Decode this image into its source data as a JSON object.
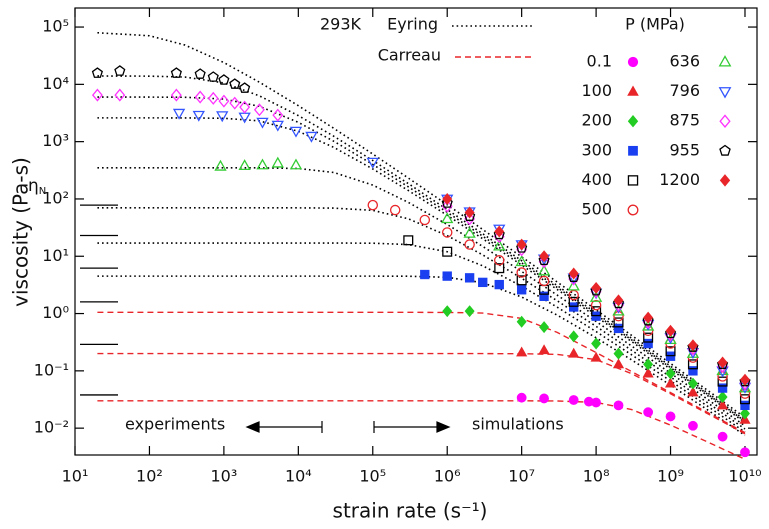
{
  "chart_data": {
    "type": "scatter",
    "x_label": "strain rate (s⁻¹)",
    "y_label": "viscosity (Pa-s)",
    "log_x": true,
    "log_y": true,
    "xlim": [
      10,
      14500000000
    ],
    "ylim": [
      0.0034,
      215000
    ],
    "xticks": [
      {
        "value": 10,
        "label": "10¹"
      },
      {
        "value": 100,
        "label": "10²"
      },
      {
        "value": 1000,
        "label": "10³"
      },
      {
        "value": 10000,
        "label": "10⁴"
      },
      {
        "value": 100000,
        "label": "10⁵"
      },
      {
        "value": 1000000,
        "label": "10⁶"
      },
      {
        "value": 10000000,
        "label": "10⁷"
      },
      {
        "value": 100000000,
        "label": "10⁸"
      },
      {
        "value": 1000000000,
        "label": "10⁹"
      },
      {
        "value": 10000000000,
        "label": "10¹⁰"
      }
    ],
    "yticks": [
      {
        "value": 0.01,
        "label": "10⁻²"
      },
      {
        "value": 0.1,
        "label": "10⁻¹"
      },
      {
        "value": 1,
        "label": "10⁰"
      },
      {
        "value": 10,
        "label": "10¹"
      },
      {
        "value": 100,
        "label": "10²"
      },
      {
        "value": 1000,
        "label": "10³"
      },
      {
        "value": 10000,
        "label": "10⁴"
      },
      {
        "value": 100000,
        "label": "10⁵"
      }
    ],
    "temperature": "293K",
    "legend_title": "P (MPa)",
    "experiments_label": "experiments",
    "simulations_label": "simulations",
    "newtonian": {
      "symbol": "η",
      "subscript": "N",
      "values": [
        78,
        23,
        6.2,
        1.6,
        0.29,
        0.038
      ]
    },
    "fit_x": [
      20,
      100,
      300,
      1000,
      3000,
      10000,
      30000,
      100000,
      300000,
      1000000,
      3000000,
      10000000,
      30000000,
      100000000,
      300000000,
      1000000000,
      3000000000,
      10000000000
    ],
    "fits": [
      {
        "name": "Eyring",
        "color": "#000000",
        "style": "dotted",
        "curves": [
          [
            79500,
            70500,
            48500,
            24000,
            10900,
            4240,
            1705,
            608,
            232,
            79.2,
            29.3,
            9.76,
            3.55,
            1.16,
            0.416,
            0.1345,
            0.0478,
            0.0153
          ],
          [
            14000,
            13900,
            13400,
            10600,
            6295,
            2845,
            1241,
            469,
            185.5,
            65.3,
            24.7,
            8.37,
            3.08,
            1.02,
            0.37,
            0.1206,
            0.0431,
            0.0139
          ],
          [
            6000,
            5990,
            5950,
            5545,
            4133,
            2170,
            1015,
            401,
            163,
            58.5,
            22.4,
            7.69,
            2.857,
            0.953,
            0.347,
            0.1138,
            0.0409,
            0.01322
          ],
          [
            2600,
            2600,
            2596,
            2557,
            2303,
            1516,
            793,
            334,
            140.6,
            51.8,
            20.2,
            7.02,
            2.634,
            0.887,
            0.3248,
            0.1071,
            0.0386,
            0.01255
          ],
          [
            350,
            350,
            350,
            350,
            349,
            340,
            289.6,
            174.6,
            87.2,
            35.8,
            14.85,
            5.42,
            2.1,
            0.726,
            0.2713,
            0.091,
            0.0333,
            0.01095
          ],
          [
            70,
            70,
            70,
            70,
            70,
            69.9,
            69.2,
            63.2,
            45.1,
            22.9,
            10.56,
            4.13,
            1.67,
            0.597,
            0.2284,
            0.0782,
            0.029,
            0.00966
          ],
          [
            17,
            17,
            17,
            17,
            17,
            17,
            17,
            16.9,
            16,
            11.98,
            6.81,
            3,
            1.293,
            0.484,
            0.1907,
            0.0668,
            0.0252,
            0.00853
          ],
          [
            4.5,
            4.5,
            4.5,
            4.5,
            4.5,
            4.5,
            4.5,
            4.5,
            4.48,
            4.29,
            3.45,
            1.943,
            0.939,
            0.378,
            0.1553,
            0.0562,
            0.0217,
            0.00746
          ]
        ]
      },
      {
        "name": "Carreau",
        "color": "#e8262a",
        "style": "dashed",
        "curves": [
          [
            1.05,
            1.05,
            1.05,
            1.05,
            1.05,
            1.05,
            1.05,
            1.05,
            1.05,
            1.046,
            1.019,
            0.824,
            0.469,
            0.209,
            0.0971,
            0.0418,
            0.0194,
            0.00834
          ],
          [
            0.2,
            0.2,
            0.2,
            0.2,
            0.2,
            0.2,
            0.2,
            0.2,
            0.2,
            0.2,
            0.2,
            0.199,
            0.194,
            0.157,
            0.0893,
            0.0398,
            0.0185,
            0.00796
          ],
          [
            0.03,
            0.03,
            0.03,
            0.03,
            0.03,
            0.03,
            0.03,
            0.03,
            0.03,
            0.03,
            0.03,
            0.03,
            0.0298,
            0.0281,
            0.0211,
            0.0113,
            0.0059,
            0.00287
          ]
        ]
      }
    ],
    "series": [
      {
        "name": "0.1",
        "color": "#ff00ff",
        "marker": "circle",
        "filled": true,
        "x": [
          10000000,
          20000000,
          50000000,
          80000000,
          100000000,
          200000000,
          500000000,
          1000000000,
          2000000000,
          5000000000,
          10000000000
        ],
        "values": [
          0.034,
          0.033,
          0.031,
          0.029,
          0.028,
          0.025,
          0.019,
          0.016,
          0.011,
          0.0071,
          0.0038
        ]
      },
      {
        "name": "100",
        "color": "#e8262a",
        "marker": "triangle-up",
        "filled": true,
        "x": [
          10000000,
          20000000,
          50000000,
          100000000,
          200000000,
          500000000,
          1000000000,
          2000000000,
          5000000000,
          10000000000
        ],
        "values": [
          0.21,
          0.23,
          0.2,
          0.17,
          0.13,
          0.09,
          0.06,
          0.042,
          0.025,
          0.014
        ]
      },
      {
        "name": "200",
        "color": "#22cc22",
        "marker": "diamond",
        "filled": true,
        "x": [
          1000000,
          2000000,
          10000000,
          20000000,
          50000000,
          100000000,
          200000000,
          500000000,
          1000000000,
          2000000000,
          5000000000,
          10000000000
        ],
        "values": [
          1.1,
          1.1,
          0.72,
          0.58,
          0.4,
          0.3,
          0.2,
          0.13,
          0.09,
          0.06,
          0.035,
          0.018
        ]
      },
      {
        "name": "300",
        "color": "#1a3ff0",
        "marker": "square",
        "filled": true,
        "x": [
          500000,
          1000000,
          2000000,
          3000000,
          5000000,
          10000000,
          20000000,
          50000000,
          100000000,
          200000000,
          500000000,
          1000000000,
          2000000000,
          5000000000,
          10000000000
        ],
        "values": [
          4.8,
          4.5,
          4.2,
          3.5,
          3.2,
          2.6,
          2,
          1.3,
          0.9,
          0.55,
          0.3,
          0.18,
          0.1,
          0.05,
          0.025
        ]
      },
      {
        "name": "400",
        "color": "#000000",
        "marker": "square",
        "filled": false,
        "x": [
          300000,
          1000000,
          5000000,
          10000000,
          20000000,
          50000000,
          100000000,
          200000000,
          500000000,
          1000000000,
          2000000000,
          5000000000,
          10000000000
        ],
        "values": [
          19,
          12,
          6.2,
          3.8,
          2.6,
          1.6,
          1.1,
          0.7,
          0.38,
          0.22,
          0.13,
          0.065,
          0.032
        ]
      },
      {
        "name": "500",
        "color": "#e8262a",
        "marker": "circle",
        "filled": false,
        "x": [
          100000,
          200000,
          500000,
          1000000,
          2000000,
          5000000,
          10000000,
          20000000,
          50000000,
          100000000,
          200000000,
          500000000,
          1000000000,
          2000000000,
          5000000000,
          10000000000
        ],
        "values": [
          78,
          64,
          43,
          26,
          16,
          8.5,
          5.2,
          3.7,
          2.1,
          1.4,
          0.9,
          0.5,
          0.3,
          0.17,
          0.08,
          0.04
        ]
      },
      {
        "name": "636",
        "color": "#33cc33",
        "marker": "triangle-up",
        "filled": false,
        "x": [
          900,
          1900,
          3300,
          5300,
          9300,
          1000000,
          2000000,
          5000000,
          10000000,
          20000000,
          50000000,
          100000000,
          200000000,
          500000000,
          1000000000,
          2000000000,
          5000000000,
          10000000000
        ],
        "values": [
          370,
          380,
          390,
          420,
          390,
          45,
          25,
          15,
          8,
          5.5,
          3,
          1.9,
          1.1,
          0.6,
          0.35,
          0.2,
          0.1,
          0.05
        ]
      },
      {
        "name": "796",
        "color": "#3355ff",
        "marker": "triangle-down",
        "filled": false,
        "x": [
          250,
          460,
          950,
          1900,
          3300,
          5300,
          9300,
          15000,
          100000,
          1000000,
          2000000,
          5000000,
          10000000,
          20000000,
          50000000,
          100000000,
          200000000,
          500000000,
          1000000000,
          2000000000,
          5000000000,
          10000000000
        ],
        "values": [
          3150,
          2900,
          2850,
          2700,
          2200,
          1950,
          1530,
          1250,
          440,
          100,
          60,
          30,
          16,
          9,
          4.2,
          2.3,
          1.3,
          0.65,
          0.38,
          0.21,
          0.1,
          0.052
        ]
      },
      {
        "name": "875",
        "color": "#ff33ff",
        "marker": "diamond",
        "filled": false,
        "x": [
          20,
          40,
          230,
          480,
          720,
          1000,
          1400,
          1900,
          3000,
          5300,
          1000000,
          2000000,
          5000000,
          10000000,
          20000000,
          50000000,
          100000000,
          200000000,
          500000000,
          1000000000,
          2000000000,
          5000000000,
          10000000000
        ],
        "values": [
          6500,
          6500,
          6500,
          6000,
          5700,
          5100,
          4700,
          4000,
          3600,
          2900,
          75,
          45,
          22,
          13,
          8,
          4,
          2.4,
          1.4,
          0.7,
          0.42,
          0.24,
          0.12,
          0.06
        ]
      },
      {
        "name": "955",
        "color": "#000000",
        "marker": "pentagon",
        "filled": false,
        "x": [
          20,
          40,
          230,
          480,
          720,
          1000,
          1400,
          1900,
          1000000,
          2000000,
          5000000,
          10000000,
          20000000,
          50000000,
          100000000,
          200000000,
          500000000,
          1000000000,
          2000000000,
          5000000000,
          10000000000
        ],
        "values": [
          15700,
          17100,
          15700,
          15100,
          13400,
          11900,
          10100,
          8600,
          85,
          50,
          24,
          14,
          8.5,
          4.3,
          2.5,
          1.5,
          0.75,
          0.45,
          0.26,
          0.13,
          0.065
        ]
      },
      {
        "name": "1200",
        "color": "#e8262a",
        "marker": "diamond",
        "filled": true,
        "x": [
          1000000,
          2000000,
          5000000,
          10000000,
          20000000,
          50000000,
          100000000,
          200000000,
          500000000,
          1000000000,
          2000000000,
          5000000000,
          10000000000
        ],
        "values": [
          100,
          58,
          27,
          16,
          10,
          5,
          2.8,
          1.7,
          0.85,
          0.5,
          0.28,
          0.14,
          0.07
        ]
      }
    ]
  }
}
